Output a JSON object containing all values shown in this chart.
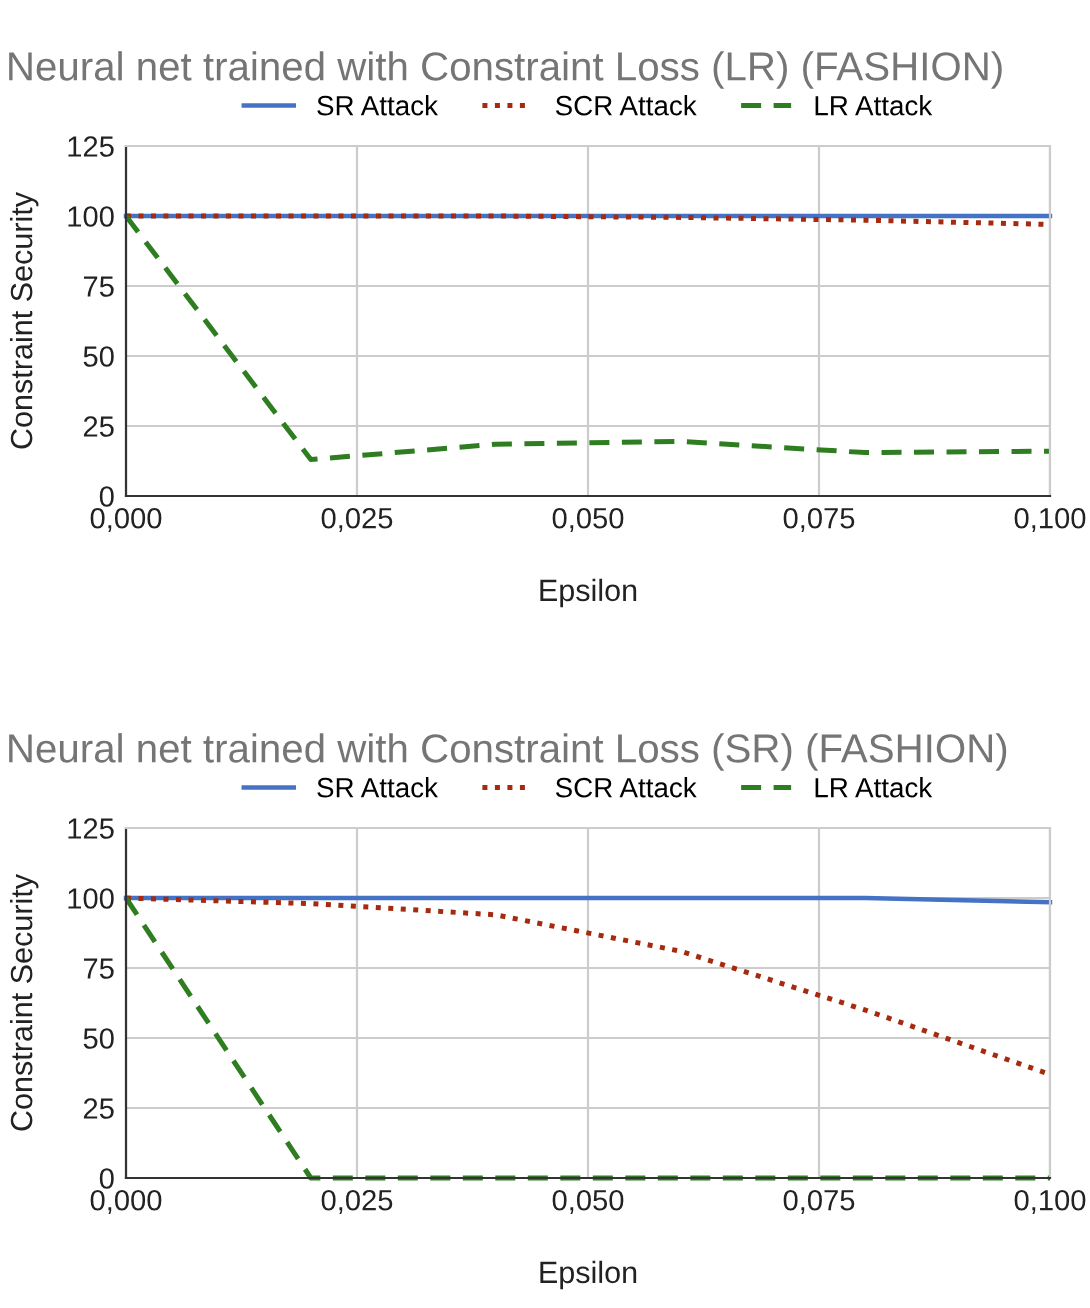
{
  "chart_data": [
    {
      "type": "line",
      "title": "Neural net trained with Constraint Loss (LR) (FASHION)",
      "xlabel": "Epsilon",
      "ylabel": "Constraint Security",
      "x": [
        0,
        0.02,
        0.04,
        0.06,
        0.08,
        0.1
      ],
      "series": [
        {
          "name": "SR Attack",
          "color": "#4472c4",
          "line_style": "solid",
          "values": [
            100,
            100,
            100,
            100,
            100,
            100
          ]
        },
        {
          "name": "SCR Attack",
          "color": "#a52a0f",
          "line_style": "dotted",
          "values": [
            100,
            100,
            100,
            99.5,
            98.5,
            97
          ]
        },
        {
          "name": "LR Attack",
          "color": "#2e7d20",
          "line_style": "dashed",
          "values": [
            100,
            13,
            18.5,
            19.5,
            15.5,
            16
          ]
        }
      ],
      "xlim": [
        0,
        0.1
      ],
      "xticks": [
        {
          "value": 0,
          "label": "0,000"
        },
        {
          "value": 0.025,
          "label": "0,025"
        },
        {
          "value": 0.05,
          "label": "0,050"
        },
        {
          "value": 0.075,
          "label": "0,075"
        },
        {
          "value": 0.1,
          "label": "0,100"
        }
      ],
      "ylim": [
        0,
        125
      ],
      "yticks": [
        0,
        25,
        50,
        75,
        100,
        125
      ],
      "grid": true,
      "legend": "top"
    },
    {
      "type": "line",
      "title": "Neural net trained with Constraint Loss (SR) (FASHION)",
      "xlabel": "Epsilon",
      "ylabel": "Constraint Security",
      "x": [
        0,
        0.02,
        0.04,
        0.06,
        0.08,
        0.1
      ],
      "series": [
        {
          "name": "SR Attack",
          "color": "#4472c4",
          "line_style": "solid",
          "values": [
            100,
            100,
            100,
            100,
            100,
            98.5
          ]
        },
        {
          "name": "SCR Attack",
          "color": "#a52a0f",
          "line_style": "dotted",
          "values": [
            100,
            98,
            94,
            81,
            60,
            37
          ]
        },
        {
          "name": "LR Attack",
          "color": "#2e7d20",
          "line_style": "dashed",
          "values": [
            100,
            0,
            0,
            0,
            0,
            0
          ]
        }
      ],
      "xlim": [
        0,
        0.1
      ],
      "xticks": [
        {
          "value": 0,
          "label": "0,000"
        },
        {
          "value": 0.025,
          "label": "0,025"
        },
        {
          "value": 0.05,
          "label": "0,050"
        },
        {
          "value": 0.075,
          "label": "0,075"
        },
        {
          "value": 0.1,
          "label": "0,100"
        }
      ],
      "ylim": [
        0,
        125
      ],
      "yticks": [
        0,
        25,
        50,
        75,
        100,
        125
      ],
      "grid": true,
      "legend": "top"
    }
  ]
}
